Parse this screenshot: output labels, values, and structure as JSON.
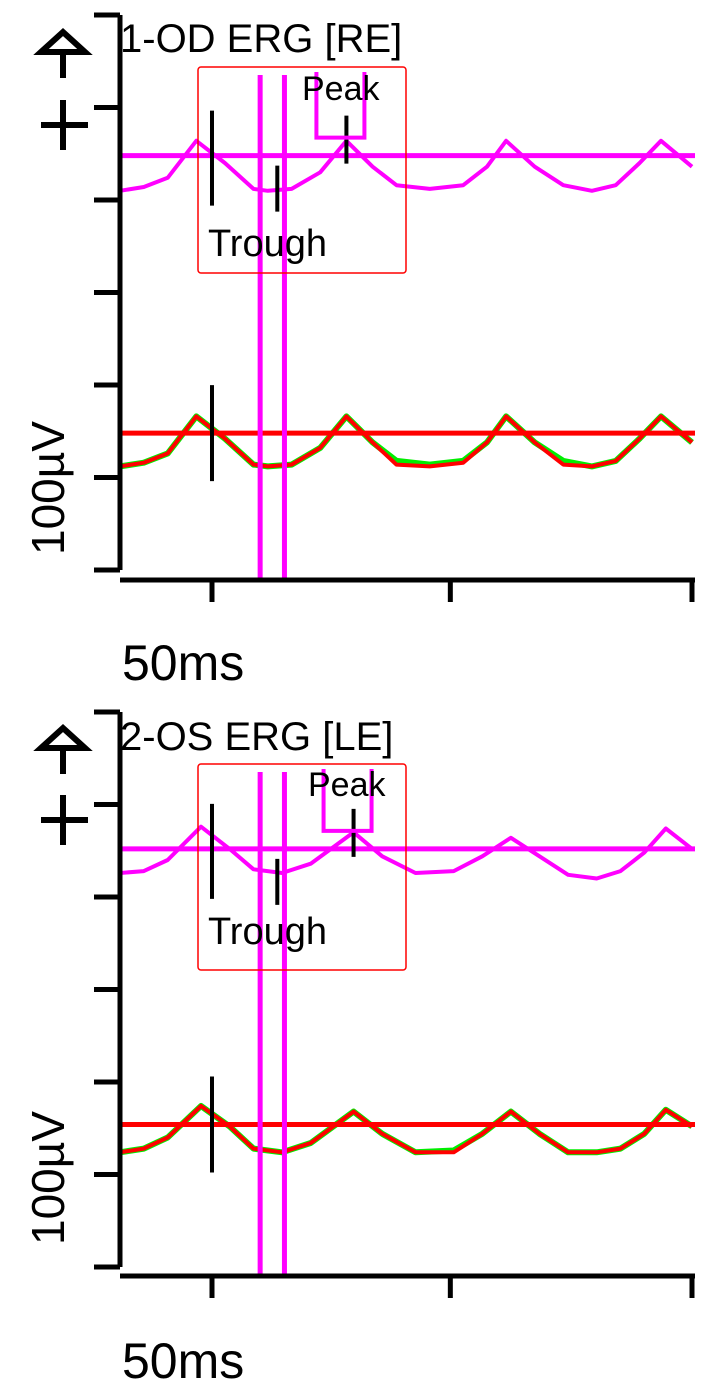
{
  "colors": {
    "trace": "#ff00ff",
    "reference": "#ff0000",
    "fit": "#00ee00",
    "box": "#ff0000",
    "axis": "#000000"
  },
  "chart_data": [
    {
      "type": "line",
      "title": "1-OD ERG [RE]",
      "x_scale_label": "50ms",
      "y_scale_label": "100µV",
      "xlim": [
        0,
        120
      ],
      "ylim": [
        0,
        300
      ],
      "x_ticks": [
        19.3,
        69.3,
        120
      ],
      "y_ticks": [
        0,
        50,
        100,
        150,
        200,
        250,
        300
      ],
      "markers": {
        "peak_label": "Peak",
        "trough_label": "Trough",
        "peak_ms": 47.5,
        "trough_ms": 33,
        "stim_ms": 19.3
      },
      "cursors_ms": [
        29.4,
        34.5
      ],
      "series": [
        {
          "name": "trace",
          "level": 224,
          "points": [
            [
              0,
              205
            ],
            [
              5,
              207
            ],
            [
              10,
              212
            ],
            [
              16,
              232
            ],
            [
              22,
              220
            ],
            [
              28,
              206
            ],
            [
              31,
              205
            ],
            [
              36,
              206
            ],
            [
              42,
              215
            ],
            [
              47.5,
              232
            ],
            [
              53,
              218
            ],
            [
              58,
              208
            ],
            [
              65,
              206
            ],
            [
              72,
              208
            ],
            [
              77,
              218
            ],
            [
              81,
              232
            ],
            [
              87,
              218
            ],
            [
              93,
              208
            ],
            [
              99,
              205
            ],
            [
              104,
              208
            ],
            [
              109,
              220
            ],
            [
              113.5,
              232
            ],
            [
              120,
              218
            ]
          ]
        },
        {
          "name": "fit",
          "points": [
            [
              0,
              56
            ],
            [
              5,
              58
            ],
            [
              10,
              63
            ],
            [
              16,
              83
            ],
            [
              22,
              71
            ],
            [
              28,
              57
            ],
            [
              31,
              56
            ],
            [
              36,
              57
            ],
            [
              42,
              66
            ],
            [
              47.5,
              83
            ],
            [
              53,
              69
            ],
            [
              58,
              59
            ],
            [
              65,
              57
            ],
            [
              72,
              59
            ],
            [
              77,
              69
            ],
            [
              81,
              83
            ],
            [
              87,
              69
            ],
            [
              93,
              59
            ],
            [
              99,
              56
            ],
            [
              104,
              59
            ],
            [
              109,
              71
            ],
            [
              113.5,
              83
            ],
            [
              120,
              69
            ]
          ]
        },
        {
          "name": "reference",
          "level": 74,
          "points": [
            [
              0,
              56
            ],
            [
              5,
              58
            ],
            [
              10,
              63
            ],
            [
              16,
              83
            ],
            [
              22,
              71
            ],
            [
              28,
              57
            ],
            [
              31,
              56
            ],
            [
              36,
              57
            ],
            [
              42,
              66
            ],
            [
              47.5,
              83
            ],
            [
              53,
              69
            ],
            [
              58,
              57
            ],
            [
              65,
              56
            ],
            [
              72,
              58
            ],
            [
              77,
              69
            ],
            [
              81,
              83
            ],
            [
              87,
              69
            ],
            [
              93,
              57
            ],
            [
              99,
              56
            ],
            [
              104,
              59
            ],
            [
              109,
              71
            ],
            [
              113.5,
              83
            ],
            [
              120,
              69
            ]
          ]
        }
      ]
    },
    {
      "type": "line",
      "title": "2-OS ERG [LE]",
      "x_scale_label": "50ms",
      "y_scale_label": "100µV",
      "xlim": [
        0,
        120
      ],
      "ylim": [
        0,
        300
      ],
      "x_ticks": [
        19.3,
        69.3,
        120
      ],
      "y_ticks": [
        0,
        50,
        100,
        150,
        200,
        250,
        300
      ],
      "markers": {
        "peak_label": "Peak",
        "trough_label": "Trough",
        "peak_ms": 49,
        "trough_ms": 33,
        "stim_ms": 19.3
      },
      "cursors_ms": [
        29.4,
        34.5
      ],
      "series": [
        {
          "name": "trace",
          "level": 226,
          "points": [
            [
              0,
              213
            ],
            [
              5,
              214
            ],
            [
              10,
              220
            ],
            [
              17,
              238
            ],
            [
              23,
              226
            ],
            [
              28,
              215
            ],
            [
              34,
              213
            ],
            [
              40,
              218
            ],
            [
              49,
              235
            ],
            [
              55,
              222
            ],
            [
              62,
              213
            ],
            [
              70,
              214
            ],
            [
              76,
              222
            ],
            [
              82,
              232
            ],
            [
              88,
              222
            ],
            [
              94,
              212
            ],
            [
              100,
              210
            ],
            [
              105,
              214
            ],
            [
              110,
              224
            ],
            [
              114.5,
              237
            ],
            [
              120,
              226
            ]
          ]
        },
        {
          "name": "fit",
          "points": [
            [
              0,
              62
            ],
            [
              5,
              64
            ],
            [
              10,
              70
            ],
            [
              17,
              87
            ],
            [
              23,
              76
            ],
            [
              28,
              64
            ],
            [
              34,
              62
            ],
            [
              40,
              67
            ],
            [
              49,
              84
            ],
            [
              55,
              72
            ],
            [
              62,
              62
            ],
            [
              70,
              63
            ],
            [
              76,
              72
            ],
            [
              82,
              84
            ],
            [
              88,
              72
            ],
            [
              94,
              62
            ],
            [
              100,
              62
            ],
            [
              105,
              64
            ],
            [
              110,
              72
            ],
            [
              114.5,
              85
            ],
            [
              120,
              76
            ]
          ]
        },
        {
          "name": "reference",
          "level": 77,
          "points": [
            [
              0,
              62
            ],
            [
              5,
              64
            ],
            [
              10,
              70
            ],
            [
              17,
              87
            ],
            [
              23,
              76
            ],
            [
              28,
              64
            ],
            [
              34,
              62
            ],
            [
              40,
              67
            ],
            [
              49,
              84
            ],
            [
              55,
              72
            ],
            [
              62,
              62
            ],
            [
              70,
              62
            ],
            [
              76,
              72
            ],
            [
              82,
              84
            ],
            [
              88,
              72
            ],
            [
              94,
              62
            ],
            [
              100,
              62
            ],
            [
              105,
              64
            ],
            [
              110,
              72
            ],
            [
              114.5,
              85
            ],
            [
              120,
              76
            ]
          ]
        }
      ]
    }
  ]
}
